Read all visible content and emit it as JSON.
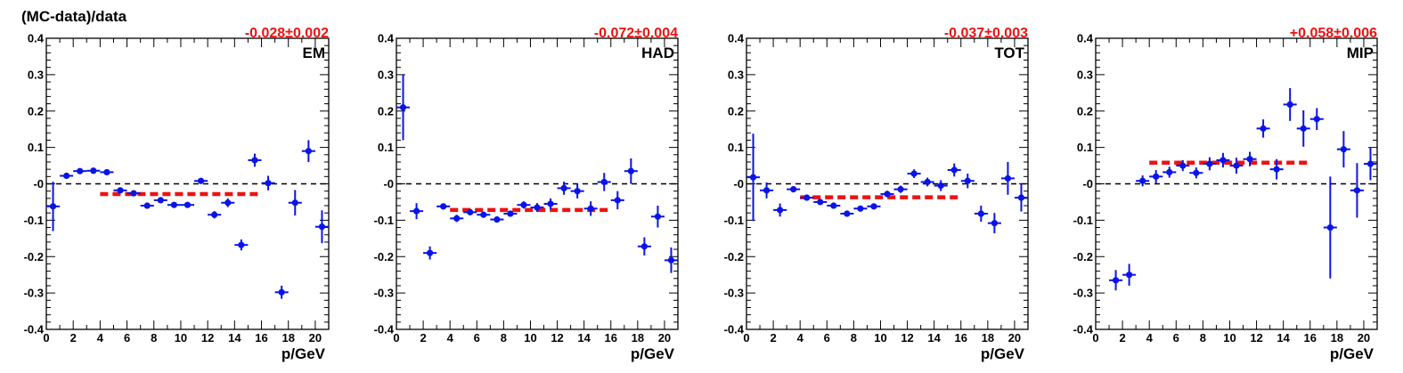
{
  "ylabel": "(MC-data)/data",
  "colors": {
    "points": "#0a14e6",
    "fit": "#ee1111",
    "zero_line": "#000000",
    "fit_label": "#ee1111"
  },
  "chart_data": [
    {
      "type": "scatter",
      "panel_label": "EM",
      "fit_label": "-0.028±0.002",
      "xlabel": "p/GeV",
      "xlim": [
        0,
        21
      ],
      "ylim": [
        -0.4,
        0.4
      ],
      "xticks": [
        "0",
        "2",
        "4",
        "6",
        "8",
        "10",
        "12",
        "14",
        "16",
        "18",
        "20"
      ],
      "yticks": [
        "-0.4",
        "-0.3",
        "-0.2",
        "-0.1",
        "-0",
        "0.1",
        "0.2",
        "0.3",
        "0.4"
      ],
      "zero_line": true,
      "fit": {
        "x_range": [
          4,
          16
        ],
        "y": -0.028
      },
      "points": [
        {
          "x": 0.5,
          "y": -0.062,
          "err": 0.068
        },
        {
          "x": 1.5,
          "y": 0.022,
          "err": 0.006
        },
        {
          "x": 2.5,
          "y": 0.035,
          "err": 0.004
        },
        {
          "x": 3.5,
          "y": 0.036,
          "err": 0.004
        },
        {
          "x": 4.5,
          "y": 0.032,
          "err": 0.004
        },
        {
          "x": 5.5,
          "y": -0.018,
          "err": 0.004
        },
        {
          "x": 6.5,
          "y": -0.026,
          "err": 0.004
        },
        {
          "x": 7.5,
          "y": -0.06,
          "err": 0.004
        },
        {
          "x": 8.5,
          "y": -0.045,
          "err": 0.005
        },
        {
          "x": 9.5,
          "y": -0.058,
          "err": 0.005
        },
        {
          "x": 10.5,
          "y": -0.058,
          "err": 0.006
        },
        {
          "x": 11.5,
          "y": 0.008,
          "err": 0.008
        },
        {
          "x": 12.5,
          "y": -0.085,
          "err": 0.01
        },
        {
          "x": 13.5,
          "y": -0.052,
          "err": 0.012
        },
        {
          "x": 14.5,
          "y": -0.168,
          "err": 0.015
        },
        {
          "x": 15.5,
          "y": 0.065,
          "err": 0.018
        },
        {
          "x": 16.5,
          "y": 0.002,
          "err": 0.02
        },
        {
          "x": 17.5,
          "y": -0.298,
          "err": 0.018
        },
        {
          "x": 18.5,
          "y": -0.052,
          "err": 0.035
        },
        {
          "x": 19.5,
          "y": 0.09,
          "err": 0.03
        },
        {
          "x": 20.5,
          "y": -0.118,
          "err": 0.045
        }
      ]
    },
    {
      "type": "scatter",
      "panel_label": "HAD",
      "fit_label": "-0.072±0.004",
      "xlabel": "p/GeV",
      "xlim": [
        0,
        21
      ],
      "ylim": [
        -0.4,
        0.4
      ],
      "xticks": [
        "0",
        "2",
        "4",
        "6",
        "8",
        "10",
        "12",
        "14",
        "16",
        "18",
        "20"
      ],
      "yticks": [
        "-0.4",
        "-0.3",
        "-0.2",
        "-0.1",
        "-0",
        "0.1",
        "0.2",
        "0.3",
        "0.4"
      ],
      "zero_line": true,
      "fit": {
        "x_range": [
          4,
          16
        ],
        "y": -0.072
      },
      "points": [
        {
          "x": 0.5,
          "y": 0.21,
          "err": 0.09
        },
        {
          "x": 1.5,
          "y": -0.075,
          "err": 0.022
        },
        {
          "x": 2.5,
          "y": -0.19,
          "err": 0.018
        },
        {
          "x": 3.5,
          "y": -0.062,
          "err": 0.008
        },
        {
          "x": 4.5,
          "y": -0.095,
          "err": 0.01
        },
        {
          "x": 5.5,
          "y": -0.078,
          "err": 0.008
        },
        {
          "x": 6.5,
          "y": -0.085,
          "err": 0.008
        },
        {
          "x": 7.5,
          "y": -0.098,
          "err": 0.008
        },
        {
          "x": 8.5,
          "y": -0.082,
          "err": 0.008
        },
        {
          "x": 9.5,
          "y": -0.058,
          "err": 0.01
        },
        {
          "x": 10.5,
          "y": -0.065,
          "err": 0.012
        },
        {
          "x": 11.5,
          "y": -0.055,
          "err": 0.015
        },
        {
          "x": 12.5,
          "y": -0.012,
          "err": 0.018
        },
        {
          "x": 13.5,
          "y": -0.02,
          "err": 0.02
        },
        {
          "x": 14.5,
          "y": -0.068,
          "err": 0.02
        },
        {
          "x": 15.5,
          "y": 0.005,
          "err": 0.025
        },
        {
          "x": 16.5,
          "y": -0.045,
          "err": 0.025
        },
        {
          "x": 17.5,
          "y": 0.035,
          "err": 0.035
        },
        {
          "x": 18.5,
          "y": -0.172,
          "err": 0.025
        },
        {
          "x": 19.5,
          "y": -0.09,
          "err": 0.03
        },
        {
          "x": 20.5,
          "y": -0.21,
          "err": 0.035
        }
      ]
    },
    {
      "type": "scatter",
      "panel_label": "TOT",
      "fit_label": "-0.037±0.003",
      "xlabel": "p/GeV",
      "xlim": [
        0,
        21
      ],
      "ylim": [
        -0.4,
        0.4
      ],
      "xticks": [
        "0",
        "2",
        "4",
        "6",
        "8",
        "10",
        "12",
        "14",
        "16",
        "18",
        "20"
      ],
      "yticks": [
        "-0.4",
        "-0.3",
        "-0.2",
        "-0.1",
        "-0",
        "0.1",
        "0.2",
        "0.3",
        "0.4"
      ],
      "zero_line": true,
      "fit": {
        "x_range": [
          4,
          16
        ],
        "y": -0.037
      },
      "points": [
        {
          "x": 0.5,
          "y": 0.018,
          "err": 0.12
        },
        {
          "x": 1.5,
          "y": -0.018,
          "err": 0.022
        },
        {
          "x": 2.5,
          "y": -0.072,
          "err": 0.018
        },
        {
          "x": 3.5,
          "y": -0.015,
          "err": 0.008
        },
        {
          "x": 4.5,
          "y": -0.038,
          "err": 0.006
        },
        {
          "x": 5.5,
          "y": -0.05,
          "err": 0.006
        },
        {
          "x": 6.5,
          "y": -0.06,
          "err": 0.006
        },
        {
          "x": 7.5,
          "y": -0.082,
          "err": 0.006
        },
        {
          "x": 8.5,
          "y": -0.068,
          "err": 0.007
        },
        {
          "x": 9.5,
          "y": -0.062,
          "err": 0.008
        },
        {
          "x": 10.5,
          "y": -0.028,
          "err": 0.009
        },
        {
          "x": 11.5,
          "y": -0.015,
          "err": 0.01
        },
        {
          "x": 12.5,
          "y": 0.028,
          "err": 0.012
        },
        {
          "x": 13.5,
          "y": 0.005,
          "err": 0.012
        },
        {
          "x": 14.5,
          "y": -0.005,
          "err": 0.015
        },
        {
          "x": 15.5,
          "y": 0.038,
          "err": 0.018
        },
        {
          "x": 16.5,
          "y": 0.008,
          "err": 0.02
        },
        {
          "x": 17.5,
          "y": -0.082,
          "err": 0.022
        },
        {
          "x": 18.5,
          "y": -0.108,
          "err": 0.028
        },
        {
          "x": 19.5,
          "y": 0.015,
          "err": 0.045
        },
        {
          "x": 20.5,
          "y": -0.038,
          "err": 0.038
        }
      ]
    },
    {
      "type": "scatter",
      "panel_label": "MIP",
      "fit_label": "+0.058±0.006",
      "xlabel": "p/GeV",
      "xlim": [
        0,
        21
      ],
      "ylim": [
        -0.4,
        0.4
      ],
      "xticks": [
        "0",
        "2",
        "4",
        "6",
        "8",
        "10",
        "12",
        "14",
        "16",
        "18",
        "20"
      ],
      "yticks": [
        "-0.4",
        "-0.3",
        "-0.2",
        "-0.1",
        "-0",
        "0.1",
        "0.2",
        "0.3",
        "0.4"
      ],
      "zero_line": true,
      "fit": {
        "x_range": [
          4,
          16
        ],
        "y": 0.058
      },
      "points": [
        {
          "x": 1.5,
          "y": -0.265,
          "err": 0.028
        },
        {
          "x": 2.5,
          "y": -0.25,
          "err": 0.03
        },
        {
          "x": 3.5,
          "y": 0.008,
          "err": 0.015
        },
        {
          "x": 4.5,
          "y": 0.02,
          "err": 0.018
        },
        {
          "x": 5.5,
          "y": 0.032,
          "err": 0.015
        },
        {
          "x": 6.5,
          "y": 0.05,
          "err": 0.015
        },
        {
          "x": 7.5,
          "y": 0.03,
          "err": 0.015
        },
        {
          "x": 8.5,
          "y": 0.055,
          "err": 0.018
        },
        {
          "x": 9.5,
          "y": 0.065,
          "err": 0.02
        },
        {
          "x": 10.5,
          "y": 0.05,
          "err": 0.022
        },
        {
          "x": 11.5,
          "y": 0.068,
          "err": 0.02
        },
        {
          "x": 12.5,
          "y": 0.152,
          "err": 0.025
        },
        {
          "x": 13.5,
          "y": 0.04,
          "err": 0.028
        },
        {
          "x": 14.5,
          "y": 0.218,
          "err": 0.045
        },
        {
          "x": 15.5,
          "y": 0.152,
          "err": 0.05
        },
        {
          "x": 16.5,
          "y": 0.178,
          "err": 0.03
        },
        {
          "x": 17.5,
          "y": -0.12,
          "err": 0.14
        },
        {
          "x": 18.5,
          "y": 0.095,
          "err": 0.05
        },
        {
          "x": 19.5,
          "y": -0.018,
          "err": 0.075
        },
        {
          "x": 20.5,
          "y": 0.055,
          "err": 0.045
        }
      ]
    }
  ]
}
